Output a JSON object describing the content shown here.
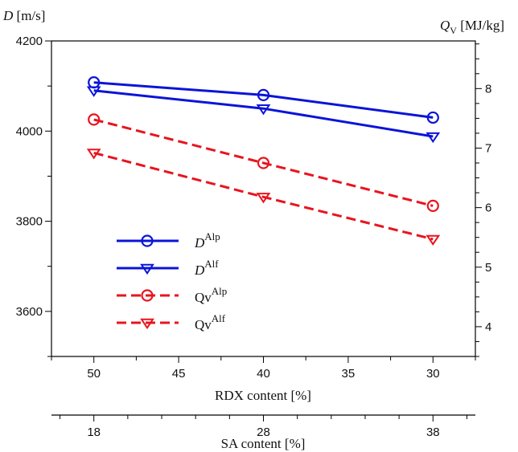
{
  "chart_data": {
    "type": "line",
    "left_axis_label": {
      "var": "D",
      "unit": "[m/s]"
    },
    "right_axis_label": {
      "var": "Q",
      "sub": "V",
      "unit": "[MJ/kg]"
    },
    "xlabel": "RDX content [%]",
    "x2label": "SA content [%]",
    "x": [
      50,
      40,
      30
    ],
    "x_ticks": [
      "50",
      "45",
      "40",
      "35",
      "30"
    ],
    "x2": [
      18,
      28,
      38
    ],
    "x2_ticks": [
      "18",
      "28",
      "38"
    ],
    "xlim": [
      52.5,
      27.5
    ],
    "ylim_left": [
      3500,
      4200
    ],
    "ylim_right": [
      3.5,
      8.8
    ],
    "y_left_ticks": [
      "3600",
      "3800",
      "4000",
      "4200"
    ],
    "y_left_tick_values": [
      3600,
      3800,
      4000,
      4200
    ],
    "y_right_ticks": [
      "4",
      "5",
      "6",
      "7",
      "8"
    ],
    "y_right_tick_values": [
      4,
      5,
      6,
      7,
      8
    ],
    "grid": false,
    "legend_position": "lower-left",
    "series": [
      {
        "name": "D",
        "sup": "Alp",
        "axis": "left",
        "marker": "circle",
        "style": "solid",
        "color": "#0a14d8",
        "values": [
          4108,
          4080,
          4030
        ]
      },
      {
        "name": "D",
        "sup": "Alf",
        "axis": "left",
        "marker": "triangle-down",
        "style": "solid",
        "color": "#0a14d8",
        "values": [
          4090,
          4050,
          3988
        ]
      },
      {
        "name": "Qv",
        "sup": "Alp",
        "axis": "right",
        "marker": "circle",
        "style": "dashed",
        "color": "#e8141e",
        "values": [
          7.48,
          6.75,
          6.03
        ]
      },
      {
        "name": "Qv",
        "sup": "Alf",
        "axis": "right",
        "marker": "triangle-down",
        "style": "dashed",
        "color": "#e8141e",
        "values": [
          6.92,
          6.18,
          5.47
        ]
      }
    ]
  }
}
